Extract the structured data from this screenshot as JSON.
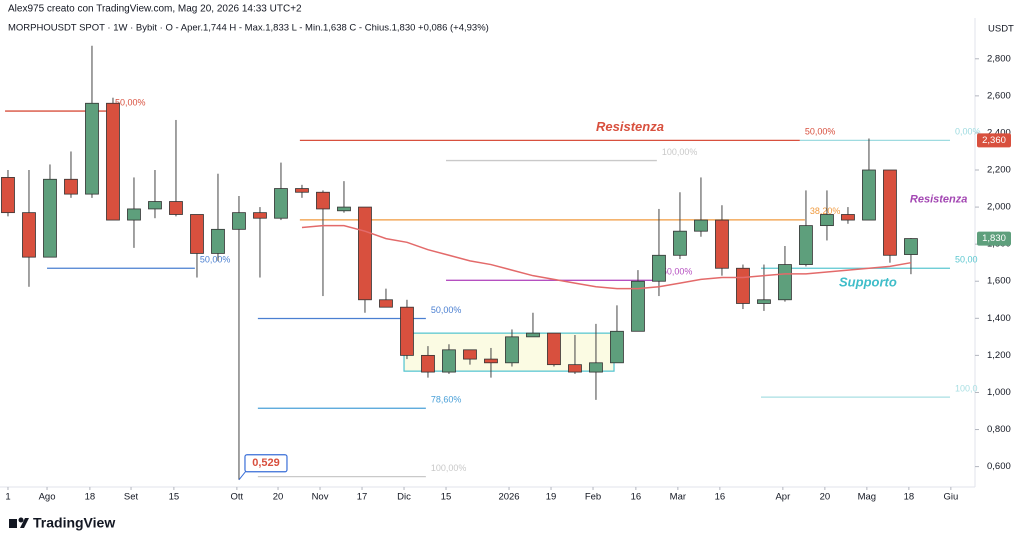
{
  "chart_data": {
    "type": "candlestick",
    "credit": "Alex975 creato con TradingView.com, Mag 20, 2026 14:33 UTC+2",
    "title": "MORPHOUSDT SPOT · 1W · Bybit · O - Aper.1,744 H - Max.1,833 L - Min.1,638 C - Chius.1,830 +0,086 (+4,93%)",
    "y_unit": "USDT",
    "brand": "TradingView",
    "open": [
      2.16,
      1.97,
      1.73,
      2.15,
      2.07,
      2.56,
      1.93,
      1.99,
      2.03,
      1.96,
      1.75,
      1.88,
      1.97,
      1.94,
      2.1,
      2.08,
      1.98,
      2.0,
      1.5,
      1.46,
      1.2,
      1.11,
      1.23,
      1.18,
      1.16,
      1.3,
      1.32,
      1.15,
      1.11,
      1.16,
      1.33,
      1.6,
      1.74,
      1.87,
      1.93,
      1.67,
      1.48,
      1.5,
      1.69,
      1.9,
      1.96,
      1.93,
      2.2,
      1.744
    ],
    "high": [
      2.2,
      2.2,
      2.23,
      2.3,
      2.87,
      2.59,
      2.16,
      2.2,
      2.47,
      1.96,
      2.18,
      2.06,
      2.0,
      2.24,
      2.12,
      2.09,
      2.14,
      2.0,
      1.56,
      1.5,
      1.25,
      1.26,
      1.23,
      1.24,
      1.34,
      1.43,
      1.32,
      1.31,
      1.37,
      1.47,
      1.66,
      1.99,
      2.08,
      2.16,
      2.01,
      1.69,
      1.69,
      1.79,
      2.09,
      2.09,
      2.0,
      2.37,
      2.2,
      1.833
    ],
    "low": [
      1.95,
      1.57,
      1.73,
      2.05,
      2.05,
      1.93,
      1.78,
      1.94,
      1.95,
      1.62,
      1.71,
      0.529,
      1.62,
      1.93,
      2.05,
      1.52,
      1.97,
      1.43,
      1.46,
      1.18,
      1.08,
      1.1,
      1.15,
      1.08,
      1.14,
      1.3,
      1.14,
      1.1,
      0.96,
      1.16,
      1.33,
      1.52,
      1.72,
      1.84,
      1.63,
      1.45,
      1.44,
      1.49,
      1.68,
      1.82,
      1.91,
      1.93,
      1.7,
      1.638
    ],
    "close": [
      1.97,
      1.73,
      2.15,
      2.07,
      2.56,
      1.93,
      1.99,
      2.03,
      1.96,
      1.75,
      1.88,
      1.97,
      1.94,
      2.1,
      2.08,
      1.99,
      2.0,
      1.5,
      1.46,
      1.2,
      1.11,
      1.23,
      1.18,
      1.16,
      1.3,
      1.32,
      1.15,
      1.11,
      1.16,
      1.33,
      1.6,
      1.74,
      1.87,
      1.93,
      1.67,
      1.48,
      1.5,
      1.69,
      1.9,
      1.96,
      1.93,
      2.2,
      1.74,
      1.83
    ],
    "ma": [
      null,
      null,
      null,
      null,
      null,
      null,
      null,
      null,
      null,
      null,
      null,
      null,
      null,
      null,
      1.89,
      1.9,
      1.9,
      1.87,
      1.83,
      1.81,
      1.77,
      1.74,
      1.71,
      1.69,
      1.66,
      1.63,
      1.61,
      1.59,
      1.57,
      1.56,
      1.56,
      1.57,
      1.59,
      1.61,
      1.62,
      1.62,
      1.63,
      1.64,
      1.64,
      1.65,
      1.66,
      1.67,
      1.68,
      1.7
    ],
    "up_color": "#5e9f7c",
    "down_color": "#d8503e",
    "ma_color": "#e36a6a",
    "xlim": [
      -0.38,
      46.05
    ],
    "ylim": [
      0.49,
      3.02
    ],
    "xticks": [
      {
        "value": 0,
        "label": "1"
      },
      {
        "value": 1.86,
        "label": "Ago"
      },
      {
        "value": 3.9,
        "label": "18"
      },
      {
        "value": 5.86,
        "label": "Set"
      },
      {
        "value": 7.9,
        "label": "15"
      },
      {
        "value": 10.9,
        "label": "Ott"
      },
      {
        "value": 12.86,
        "label": "20"
      },
      {
        "value": 14.86,
        "label": "Nov"
      },
      {
        "value": 16.86,
        "label": "17"
      },
      {
        "value": 18.86,
        "label": "Dic"
      },
      {
        "value": 20.86,
        "label": "15"
      },
      {
        "value": 23.86,
        "label": "2026"
      },
      {
        "value": 25.86,
        "label": "19"
      },
      {
        "value": 27.86,
        "label": "Feb"
      },
      {
        "value": 29.9,
        "label": "16"
      },
      {
        "value": 31.9,
        "label": "Mar"
      },
      {
        "value": 33.9,
        "label": "16"
      },
      {
        "value": 36.9,
        "label": "Apr"
      },
      {
        "value": 38.9,
        "label": "20"
      },
      {
        "value": 40.9,
        "label": "Mag"
      },
      {
        "value": 42.9,
        "label": "18"
      },
      {
        "value": 44.9,
        "label": "Giu"
      }
    ],
    "yticks": [
      {
        "value": 0.6,
        "label": "0,600"
      },
      {
        "value": 0.8,
        "label": "0,800"
      },
      {
        "value": 1.0,
        "label": "1,000"
      },
      {
        "value": 1.2,
        "label": "1,200"
      },
      {
        "value": 1.4,
        "label": "1,400"
      },
      {
        "value": 1.6,
        "label": "1,600"
      },
      {
        "value": 1.8,
        "label": "1,800"
      },
      {
        "value": 2.0,
        "label": "2,000"
      },
      {
        "value": 2.2,
        "label": "2,200"
      },
      {
        "value": 2.4,
        "label": "2,400"
      },
      {
        "value": 2.6,
        "label": "2,600"
      },
      {
        "value": 2.8,
        "label": "2,800"
      }
    ],
    "grid": false,
    "levels": [
      {
        "label": "50,00%",
        "y": 2.518,
        "x": [
          -0.14,
          4.86
        ],
        "color": "#d8503e"
      },
      {
        "label": "50,00%",
        "y": 2.36,
        "x": [
          13.9,
          37.71
        ],
        "color": "#d8503e"
      },
      {
        "label": "0,00%",
        "y": 2.36,
        "x": [
          37.71,
          44.86
        ],
        "color": "#9edbe0"
      },
      {
        "label": "100,00%",
        "y": 2.251,
        "x": [
          20.86,
          30.9
        ],
        "color": "#c9c9c9"
      },
      {
        "label": "38,20%",
        "y": 1.931,
        "x": [
          13.9,
          37.95
        ],
        "color": "#f09a3e"
      },
      {
        "label": "50,00%",
        "y": 1.67,
        "x": [
          1.86,
          8.9
        ],
        "color": "#4a7fd1"
      },
      {
        "label": "50,00%",
        "y": 1.605,
        "x": [
          20.86,
          30.9
        ],
        "color": "#b54fc0"
      },
      {
        "label": "50,00%",
        "y": 1.399,
        "x": [
          11.9,
          19.9
        ],
        "color": "#4a7fd1"
      },
      {
        "label": "78,60%",
        "y": 0.915,
        "x": [
          11.9,
          19.9
        ],
        "color": "#4aa0d8"
      },
      {
        "label": "100,00%",
        "y": 0.546,
        "x": [
          11.9,
          19.9
        ],
        "color": "#c9c9c9"
      },
      {
        "label": "50,00",
        "y": 1.67,
        "x": [
          35.86,
          44.86
        ],
        "color": "#5cc7d0"
      },
      {
        "label": "100,0",
        "y": 0.975,
        "x": [
          35.86,
          44.86
        ],
        "color": "#a9dfe3"
      }
    ],
    "notes": [
      {
        "text": "Resistenza",
        "x": 29.62,
        "y": 2.43,
        "color": "#d8503e",
        "anchor": "middle",
        "size": 13
      },
      {
        "text": "Resistenza",
        "x": 42.95,
        "y": 2.04,
        "color": "#a347b3",
        "anchor": "start",
        "size": 11
      },
      {
        "text": "Supporto",
        "x": 40.95,
        "y": 1.59,
        "color": "#3fbdc9",
        "anchor": "middle",
        "size": 13
      }
    ],
    "range_box": {
      "x": [
        18.86,
        28.86
      ],
      "y": [
        1.115,
        1.32
      ]
    },
    "low_callout": {
      "value": 0.529,
      "label": "0,529"
    },
    "resist_price": {
      "value": 2.36,
      "label": "2,360"
    },
    "last_price": {
      "value": 1.83,
      "label": "1,830"
    }
  }
}
